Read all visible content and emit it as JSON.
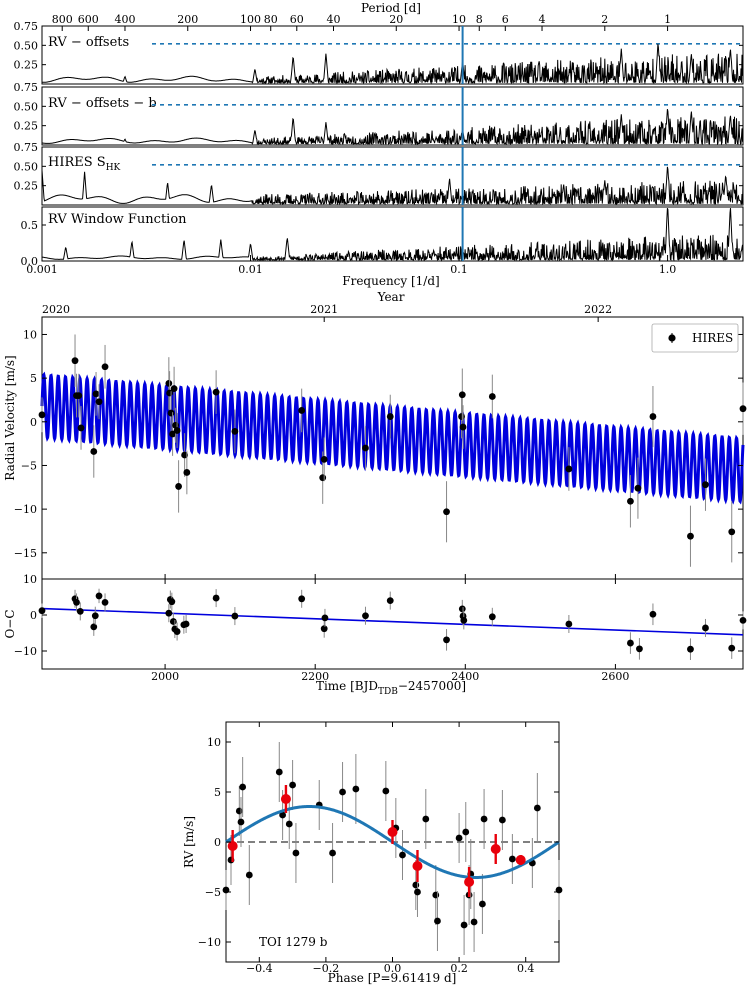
{
  "chart_data": [
    {
      "type": "line",
      "subtype": "periodogram-stack",
      "x_scale": "log",
      "xlim": [
        0.001,
        2.3
      ],
      "xlabel": "Frequency [1/d]",
      "top_axis_label": "Period [d]",
      "period_ticks": [
        "800",
        "600",
        "400",
        "200",
        "100",
        "80",
        "60",
        "40",
        "20",
        "10",
        "8",
        "6",
        "4",
        "2",
        "1"
      ],
      "period_tick_values": [
        800,
        600,
        400,
        200,
        100,
        80,
        60,
        40,
        20,
        10,
        8,
        6,
        4,
        2,
        1
      ],
      "freq_ticks": [
        "0.001",
        "0.01",
        "0.1",
        "1.0"
      ],
      "freq_tick_values": [
        0.001,
        0.01,
        0.1,
        1.0
      ],
      "highlight_frequency": 0.104,
      "panels": [
        {
          "title": "RV − offsets",
          "ylim": [
            0,
            0.75
          ],
          "y_ticks": [
            "0.75",
            "0.50",
            "0.25"
          ],
          "y_tick_values": [
            0.75,
            0.5,
            0.25
          ],
          "fap_level": 0.52,
          "seed": 11,
          "amp_low": 0.08,
          "amp_high": 0.38,
          "peaks": [
            [
              0.0025,
              0.1
            ],
            [
              0.0105,
              0.2
            ],
            [
              0.016,
              0.37
            ],
            [
              0.023,
              0.4
            ],
            [
              0.104,
              0.3
            ],
            [
              0.6,
              0.46
            ],
            [
              0.9,
              0.55
            ],
            [
              1.3,
              0.4
            ],
            [
              2.0,
              0.47
            ]
          ]
        },
        {
          "title": "RV − offsets − b",
          "ylim": [
            0,
            0.75
          ],
          "y_ticks": [
            "0.75",
            "0.50",
            "0.25"
          ],
          "y_tick_values": [
            0.75,
            0.5,
            0.25
          ],
          "fap_level": 0.52,
          "seed": 23,
          "amp_low": 0.07,
          "amp_high": 0.36,
          "peaks": [
            [
              0.0025,
              0.08
            ],
            [
              0.0105,
              0.2
            ],
            [
              0.016,
              0.37
            ],
            [
              0.023,
              0.3
            ],
            [
              0.104,
              0.2
            ],
            [
              0.6,
              0.4
            ],
            [
              1.0,
              0.5
            ],
            [
              1.3,
              0.45
            ],
            [
              2.0,
              0.4
            ]
          ]
        },
        {
          "title": "HIRES S",
          "title_sub": "HK",
          "ylim": [
            0,
            0.75
          ],
          "y_ticks": [
            "0.75",
            "0.50",
            "0.25"
          ],
          "y_tick_values": [
            0.75,
            0.5,
            0.25
          ],
          "fap_level": 0.52,
          "seed": 37,
          "amp_low": 0.12,
          "amp_high": 0.3,
          "peaks": [
            [
              0.001,
              0.45
            ],
            [
              0.0016,
              0.43
            ],
            [
              0.004,
              0.3
            ],
            [
              0.0065,
              0.27
            ],
            [
              0.09,
              0.35
            ],
            [
              0.5,
              0.32
            ],
            [
              1.0,
              0.53
            ],
            [
              1.9,
              0.4
            ]
          ]
        },
        {
          "title": "RV Window Function",
          "ylim": [
            0,
            0.75
          ],
          "y_ticks": [
            "0.5",
            "0.0"
          ],
          "y_tick_values": [
            0.5,
            0.0
          ],
          "seed": 53,
          "amp_low": 0.05,
          "amp_high": 0.35,
          "peaks": [
            [
              0.0013,
              0.2
            ],
            [
              0.0027,
              0.28
            ],
            [
              0.0048,
              0.3
            ],
            [
              0.0072,
              0.3
            ],
            [
              0.01,
              0.25
            ],
            [
              0.015,
              0.33
            ],
            [
              1.0,
              0.82
            ],
            [
              2.0,
              0.78
            ]
          ]
        }
      ]
    },
    {
      "type": "scatter",
      "subtype": "rv-timeseries",
      "top_axis_label": "Year",
      "year_ticks": [
        "2020",
        "2021",
        "2022"
      ],
      "year_tick_values": [
        1836,
        2212,
        2577
      ],
      "xlabel": "Time [BJD",
      "xlabel_sub": "TDB",
      "xlabel_tail": "−2457000]",
      "xlim": [
        1836,
        2770
      ],
      "x_ticks": [
        "2000",
        "2200",
        "2400",
        "2600"
      ],
      "x_tick_values": [
        2000,
        2200,
        2400,
        2600
      ],
      "ylabel": "Radial Velocity [m/s]",
      "ylim": [
        -18,
        12
      ],
      "y_ticks": [
        "10",
        "5",
        "0",
        "−5",
        "−10",
        "−15"
      ],
      "y_tick_values": [
        10,
        5,
        0,
        -5,
        -10,
        -15
      ],
      "legend": {
        "label": "HIRES",
        "position": "top-right"
      },
      "model": {
        "slope": -0.00785,
        "intercept_at_1836": 1.8,
        "amplitude": 3.6,
        "period": 9.61419,
        "color": "#0000dd"
      },
      "points": [
        {
          "x": 1836,
          "y": 0.8,
          "e": 2.0
        },
        {
          "x": 1880,
          "y": 7.0,
          "e": 3.0
        },
        {
          "x": 1882,
          "y": 3.0,
          "e": 2.5
        },
        {
          "x": 1885,
          "y": 3.0,
          "e": 2.5
        },
        {
          "x": 1888,
          "y": -0.7,
          "e": 2.5
        },
        {
          "x": 1905,
          "y": -3.4,
          "e": 3.0
        },
        {
          "x": 1908,
          "y": 3.2,
          "e": 2.5
        },
        {
          "x": 1912,
          "y": 2.3,
          "e": 2.0
        },
        {
          "x": 1920,
          "y": 6.3,
          "e": 2.5
        },
        {
          "x": 2005,
          "y": 4.4,
          "e": 3.0
        },
        {
          "x": 2006,
          "y": 3.3,
          "e": 2.5
        },
        {
          "x": 2008,
          "y": 1.0,
          "e": 2.5
        },
        {
          "x": 2010,
          "y": -1.4,
          "e": 2.5
        },
        {
          "x": 2012,
          "y": 3.8,
          "e": 2.5
        },
        {
          "x": 2014,
          "y": -0.4,
          "e": 2.0
        },
        {
          "x": 2016,
          "y": -1.0,
          "e": 2.0
        },
        {
          "x": 2018,
          "y": -7.4,
          "e": 3.0
        },
        {
          "x": 2026,
          "y": -3.8,
          "e": 2.5
        },
        {
          "x": 2029,
          "y": -5.8,
          "e": 2.5
        },
        {
          "x": 2068,
          "y": 3.4,
          "e": 2.5
        },
        {
          "x": 2093,
          "y": -1.1,
          "e": 2.5
        },
        {
          "x": 2182,
          "y": 1.3,
          "e": 2.5
        },
        {
          "x": 2210,
          "y": -6.4,
          "e": 3.0
        },
        {
          "x": 2212,
          "y": -4.3,
          "e": 2.5
        },
        {
          "x": 2267,
          "y": -3.0,
          "e": 2.5
        },
        {
          "x": 2300,
          "y": 0.6,
          "e": 2.5
        },
        {
          "x": 2375,
          "y": -10.3,
          "e": 3.5
        },
        {
          "x": 2395,
          "y": 0.6,
          "e": 2.5
        },
        {
          "x": 2396,
          "y": 3.1,
          "e": 3.0
        },
        {
          "x": 2397,
          "y": -0.6,
          "e": 2.5
        },
        {
          "x": 2436,
          "y": 2.9,
          "e": 2.5
        },
        {
          "x": 2538,
          "y": -5.4,
          "e": 2.5
        },
        {
          "x": 2620,
          "y": -9.1,
          "e": 3.0
        },
        {
          "x": 2630,
          "y": -7.6,
          "e": 3.5
        },
        {
          "x": 2650,
          "y": 0.6,
          "e": 3.5
        },
        {
          "x": 2700,
          "y": -13.1,
          "e": 3.5
        },
        {
          "x": 2720,
          "y": -7.2,
          "e": 3.0
        },
        {
          "x": 2755,
          "y": -12.6,
          "e": 3.5
        },
        {
          "x": 2770,
          "y": 1.5,
          "e": 3.0
        }
      ]
    },
    {
      "type": "scatter",
      "subtype": "residuals",
      "ylabel": "O−C",
      "xlim": [
        1836,
        2770
      ],
      "ylim": [
        -15,
        10
      ],
      "y_ticks": [
        "10",
        "0",
        "−10"
      ],
      "y_tick_values": [
        10,
        0,
        -10
      ],
      "trend": {
        "start": [
          1836,
          1.8
        ],
        "end": [
          2770,
          -5.5
        ],
        "color": "#0000dd"
      },
      "points": [
        {
          "x": 1836,
          "y": 1.2,
          "e": 2.0
        },
        {
          "x": 1880,
          "y": 4.5,
          "e": 2.5
        },
        {
          "x": 1882,
          "y": 3.5,
          "e": 2.5
        },
        {
          "x": 1887,
          "y": 1.0,
          "e": 2.5
        },
        {
          "x": 1905,
          "y": -3.3,
          "e": 2.5
        },
        {
          "x": 1907,
          "y": -0.2,
          "e": 2.5
        },
        {
          "x": 1912,
          "y": 5.3,
          "e": 2.0
        },
        {
          "x": 1920,
          "y": 3.5,
          "e": 2.5
        },
        {
          "x": 2005,
          "y": 0.5,
          "e": 2.5
        },
        {
          "x": 2007,
          "y": 4.3,
          "e": 2.5
        },
        {
          "x": 2009,
          "y": 3.7,
          "e": 2.5
        },
        {
          "x": 2011,
          "y": -1.8,
          "e": 2.5
        },
        {
          "x": 2013,
          "y": -3.9,
          "e": 2.5
        },
        {
          "x": 2016,
          "y": -4.6,
          "e": 2.5
        },
        {
          "x": 2025,
          "y": -2.7,
          "e": 2.5
        },
        {
          "x": 2028,
          "y": -2.5,
          "e": 2.5
        },
        {
          "x": 2068,
          "y": 4.7,
          "e": 2.5
        },
        {
          "x": 2093,
          "y": -0.3,
          "e": 2.5
        },
        {
          "x": 2182,
          "y": 4.5,
          "e": 2.5
        },
        {
          "x": 2212,
          "y": -3.8,
          "e": 2.5
        },
        {
          "x": 2213,
          "y": -0.8,
          "e": 2.5
        },
        {
          "x": 2267,
          "y": -0.2,
          "e": 2.5
        },
        {
          "x": 2300,
          "y": 4.0,
          "e": 2.5
        },
        {
          "x": 2375,
          "y": -6.9,
          "e": 3.0
        },
        {
          "x": 2396,
          "y": 1.7,
          "e": 2.5
        },
        {
          "x": 2397,
          "y": -0.3,
          "e": 2.5
        },
        {
          "x": 2398,
          "y": -1.5,
          "e": 2.5
        },
        {
          "x": 2436,
          "y": -0.5,
          "e": 2.5
        },
        {
          "x": 2538,
          "y": -2.5,
          "e": 2.5
        },
        {
          "x": 2620,
          "y": -7.8,
          "e": 3.0
        },
        {
          "x": 2632,
          "y": -9.4,
          "e": 3.0
        },
        {
          "x": 2650,
          "y": 0.2,
          "e": 3.0
        },
        {
          "x": 2700,
          "y": -9.5,
          "e": 3.0
        },
        {
          "x": 2720,
          "y": -3.6,
          "e": 2.5
        },
        {
          "x": 2755,
          "y": -9.2,
          "e": 3.0
        },
        {
          "x": 2770,
          "y": -1.5,
          "e": 2.5
        }
      ]
    },
    {
      "type": "scatter",
      "subtype": "phase-folded",
      "annotation": "TOI 1279 b",
      "xlabel": "Phase [P=9.61419 d]",
      "xlim": [
        -0.5,
        0.5
      ],
      "x_ticks": [
        "−0.4",
        "−0.2",
        "0.0",
        "0.2",
        "0.4"
      ],
      "x_tick_values": [
        -0.4,
        -0.2,
        0.0,
        0.2,
        0.4
      ],
      "ylabel": "RV [m/s]",
      "ylim": [
        -12,
        12
      ],
      "y_ticks": [
        "10",
        "5",
        "0",
        "−5",
        "−10"
      ],
      "y_tick_values": [
        10,
        5,
        0,
        -5,
        -10
      ],
      "model": {
        "amplitude": 3.55,
        "peak_phase": -0.25,
        "color": "#1f77b4"
      },
      "points": [
        {
          "x": -0.5,
          "y": -4.8,
          "e": 2.0
        },
        {
          "x": -0.485,
          "y": -1.8,
          "e": 2.5
        },
        {
          "x": -0.46,
          "y": 3.1,
          "e": 2.5
        },
        {
          "x": -0.455,
          "y": 2.0,
          "e": 2.5
        },
        {
          "x": -0.45,
          "y": 5.5,
          "e": 3.0
        },
        {
          "x": -0.43,
          "y": -3.3,
          "e": 3.0
        },
        {
          "x": -0.34,
          "y": 7.0,
          "e": 3.0
        },
        {
          "x": -0.33,
          "y": 2.7,
          "e": 2.5
        },
        {
          "x": -0.31,
          "y": 1.8,
          "e": 2.5
        },
        {
          "x": -0.3,
          "y": 5.7,
          "e": 2.5
        },
        {
          "x": -0.29,
          "y": -1.1,
          "e": 3.0
        },
        {
          "x": -0.22,
          "y": 3.7,
          "e": 2.5
        },
        {
          "x": -0.18,
          "y": -1.1,
          "e": 3.0
        },
        {
          "x": -0.15,
          "y": 5.0,
          "e": 3.0
        },
        {
          "x": -0.11,
          "y": 5.3,
          "e": 3.5
        },
        {
          "x": -0.02,
          "y": 5.1,
          "e": 3.0
        },
        {
          "x": 0.01,
          "y": 1.4,
          "e": 3.0
        },
        {
          "x": 0.03,
          "y": -1.3,
          "e": 2.5
        },
        {
          "x": 0.07,
          "y": -4.3,
          "e": 2.5
        },
        {
          "x": 0.075,
          "y": -5.0,
          "e": 2.5
        },
        {
          "x": 0.1,
          "y": 2.3,
          "e": 3.0
        },
        {
          "x": 0.13,
          "y": -5.3,
          "e": 3.0
        },
        {
          "x": 0.135,
          "y": -7.9,
          "e": 3.0
        },
        {
          "x": 0.2,
          "y": 0.4,
          "e": 2.5
        },
        {
          "x": 0.215,
          "y": -8.3,
          "e": 3.0
        },
        {
          "x": 0.22,
          "y": 1.0,
          "e": 3.0
        },
        {
          "x": 0.23,
          "y": -5.3,
          "e": 3.0
        },
        {
          "x": 0.235,
          "y": -3.2,
          "e": 3.5
        },
        {
          "x": 0.245,
          "y": -8.0,
          "e": 3.0
        },
        {
          "x": 0.27,
          "y": -6.2,
          "e": 3.0
        },
        {
          "x": 0.275,
          "y": 2.3,
          "e": 3.0
        },
        {
          "x": 0.33,
          "y": 2.2,
          "e": 3.0
        },
        {
          "x": 0.36,
          "y": -1.7,
          "e": 2.5
        },
        {
          "x": 0.42,
          "y": -2.1,
          "e": 2.5
        },
        {
          "x": 0.435,
          "y": 3.4,
          "e": 3.5
        },
        {
          "x": 0.5,
          "y": -4.8,
          "e": 3.0
        }
      ],
      "binned": [
        {
          "x": -0.48,
          "y": -0.4,
          "e": 1.6
        },
        {
          "x": -0.32,
          "y": 4.3,
          "e": 1.4
        },
        {
          "x": -0.0,
          "y": 1.0,
          "e": 1.2
        },
        {
          "x": 0.075,
          "y": -2.4,
          "e": 1.6
        },
        {
          "x": 0.23,
          "y": -4.0,
          "e": 1.5
        },
        {
          "x": 0.31,
          "y": -0.7,
          "e": 1.5
        },
        {
          "x": 0.385,
          "y": -1.8,
          "e": 0.5
        }
      ],
      "binned_color": "#e8000b"
    }
  ]
}
